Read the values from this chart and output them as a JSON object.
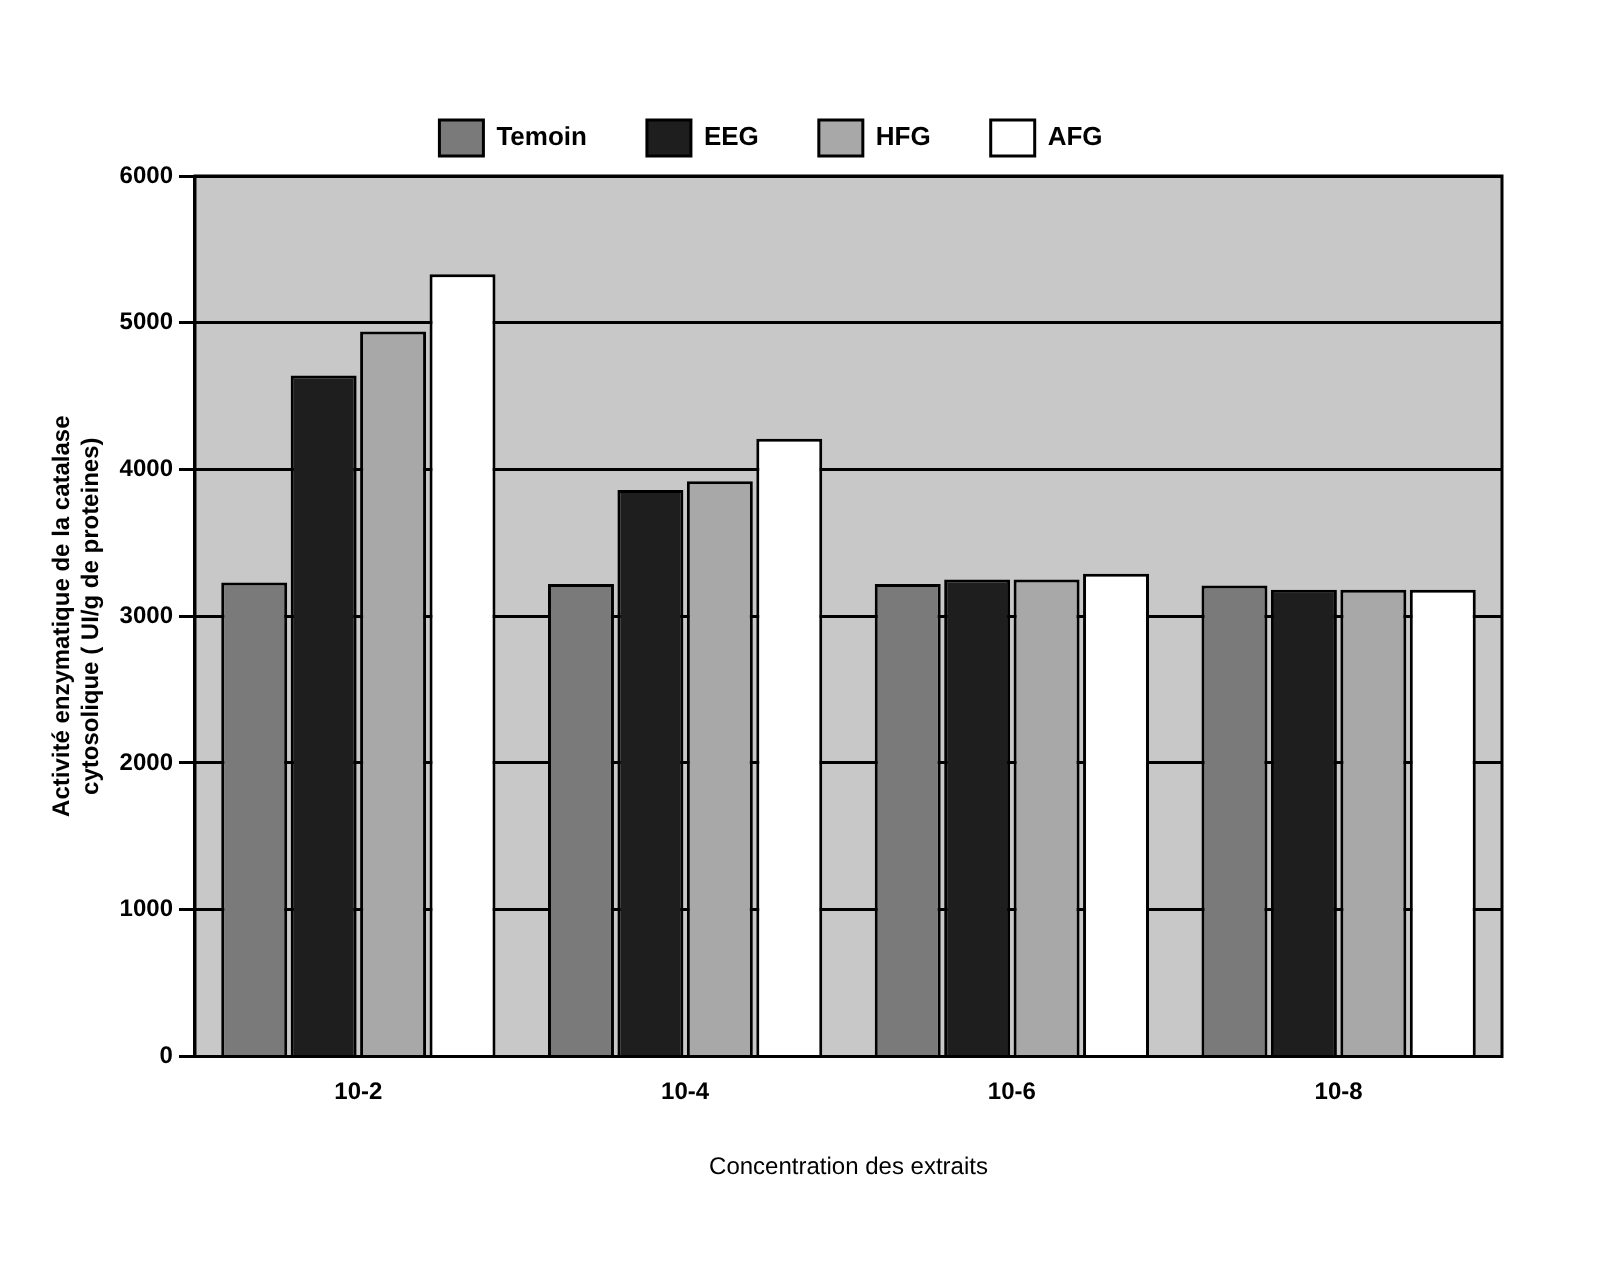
{
  "chart_data": {
    "type": "bar",
    "xlabel": "Concentration des extraits",
    "ylabel": "Activité enzymatique de la catalase cytosolique ( UI/g de proteines)",
    "categories": [
      "10-2",
      "10-4",
      "10-6",
      "10-8"
    ],
    "series": [
      {
        "name": "Temoin",
        "color": "#7a7a7a",
        "values": [
          3230,
          3220,
          3220,
          3210
        ]
      },
      {
        "name": "EEG",
        "color": "#1e1e1e",
        "values": [
          4640,
          3860,
          3250,
          3180
        ]
      },
      {
        "name": "HFG",
        "color": "#a8a8a8",
        "values": [
          4940,
          3920,
          3250,
          3180
        ]
      },
      {
        "name": "AFG",
        "color": "#ffffff",
        "values": [
          5330,
          4210,
          3290,
          3180
        ]
      }
    ],
    "ylim": [
      0,
      6000
    ],
    "yticks": [
      0,
      1000,
      2000,
      3000,
      4000,
      5000,
      6000
    ],
    "grid": "y",
    "legend": "top"
  }
}
